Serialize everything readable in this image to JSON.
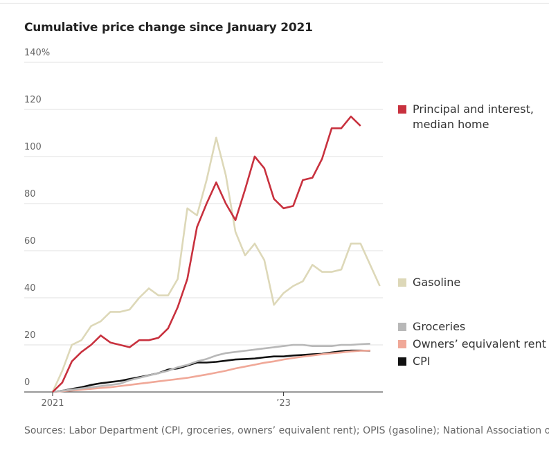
{
  "chart_data": {
    "type": "line",
    "title": "Cumulative price change since January 2021",
    "source": "Sources: Labor Department (CPI, groceries, owners’ equivalent rent); OPIS (gasoline); National Association of Realtors (principal and interest)",
    "categories": [
      "2021",
      null,
      null,
      null,
      null,
      null,
      null,
      null,
      null,
      null,
      null,
      null,
      null,
      null,
      null,
      null,
      null,
      null,
      null,
      null,
      null,
      null,
      null,
      null,
      "’23",
      null,
      null,
      null,
      null,
      null,
      null,
      null,
      null,
      null,
      null
    ],
    "ylim": [
      0,
      140
    ],
    "yticks": [
      0,
      20,
      40,
      60,
      80,
      100,
      120,
      {
        "value": 140,
        "label": "140%"
      }
    ],
    "grid": true,
    "series": [
      {
        "name": "Principal and interest, median home",
        "color": "#c8313e",
        "values": [
          0,
          4,
          13,
          17,
          20,
          24,
          21,
          20,
          19,
          22,
          22,
          23,
          27,
          36,
          48,
          70,
          80,
          89,
          80,
          73,
          86,
          100,
          95,
          82,
          78,
          79,
          90,
          91,
          99,
          112,
          112,
          117,
          113,
          null,
          null
        ]
      },
      {
        "name": "Gasoline",
        "color": "#ddd8b8",
        "values": [
          0,
          9,
          20,
          22,
          28,
          30,
          34,
          34,
          35,
          40,
          44,
          41,
          41,
          48,
          78,
          75,
          90,
          108,
          92,
          68,
          58,
          63,
          56,
          37,
          42,
          45,
          47,
          54,
          51,
          51,
          52,
          63,
          63,
          54,
          45
        ]
      },
      {
        "name": "Groceries",
        "color": "#b8b8b8",
        "values": [
          0,
          0.5,
          1,
          1.5,
          2,
          2.5,
          3,
          3.5,
          5,
          6,
          7,
          8,
          9,
          10.5,
          11.5,
          13,
          14,
          15.5,
          16.5,
          17,
          17.5,
          18,
          18.5,
          19,
          19.5,
          20,
          20,
          19.5,
          19.5,
          19.5,
          20,
          20,
          20.3,
          20.5,
          null
        ]
      },
      {
        "name": "Owners’ equivalent rent",
        "color": "#f0a898",
        "values": [
          0,
          0.3,
          0.6,
          1,
          1.3,
          1.7,
          2,
          2.5,
          3,
          3.5,
          4,
          4.5,
          5,
          5.5,
          6,
          6.7,
          7.4,
          8.2,
          9,
          10,
          10.8,
          11.6,
          12.4,
          13,
          13.8,
          14.4,
          15,
          15.5,
          16,
          16.4,
          16.8,
          17.2,
          17.5,
          17.6,
          null
        ]
      },
      {
        "name": "CPI",
        "color": "#111111",
        "values": [
          0,
          0.5,
          1.3,
          2,
          3,
          3.7,
          4.2,
          4.7,
          5.5,
          6.3,
          7.1,
          8,
          9.5,
          10,
          11.2,
          12.5,
          12.5,
          12.8,
          13.3,
          13.8,
          14,
          14.2,
          14.7,
          15.1,
          15.1,
          15.5,
          15.7,
          16,
          16.2,
          16.8,
          17.3,
          17.6,
          17.6,
          17.5,
          null
        ]
      }
    ]
  }
}
